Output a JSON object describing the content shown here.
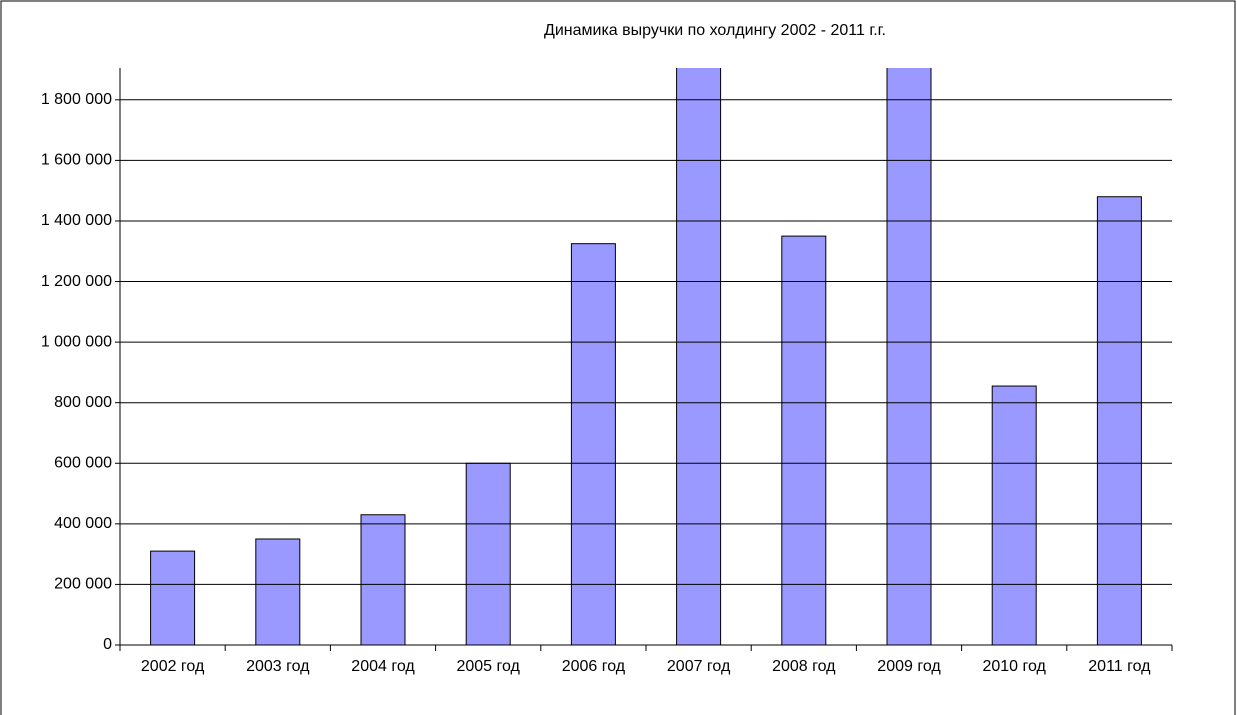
{
  "chart_data": {
    "type": "bar",
    "title": "Динамика выручки по холдингу 2002 - 2011 г.г.",
    "categories": [
      "2002 год",
      "2003 год",
      "2004 год",
      "2005 год",
      "2006 год",
      "2007 год",
      "2008 год",
      "2009 год",
      "2010 год",
      "2011 год"
    ],
    "values": [
      310000,
      350000,
      430000,
      600000,
      1325000,
      1950000,
      1350000,
      1950000,
      855000,
      1480000
    ],
    "color": "#9999ff",
    "ylim": [
      0,
      1905000
    ],
    "yticks": [
      0,
      {
        "value": 200000,
        "label": "200 000"
      },
      {
        "value": 400000,
        "label": "400 000"
      },
      {
        "value": 600000,
        "label": "600 000"
      },
      {
        "value": 800000,
        "label": "800 000"
      },
      {
        "value": 1000000,
        "label": "1 000 000"
      },
      {
        "value": 1200000,
        "label": "1 200 000"
      },
      {
        "value": 1400000,
        "label": "1 400 000"
      },
      {
        "value": 1600000,
        "label": "1 600 000"
      },
      {
        "value": 1800000,
        "label": "1 800 000"
      }
    ],
    "grid": true
  }
}
